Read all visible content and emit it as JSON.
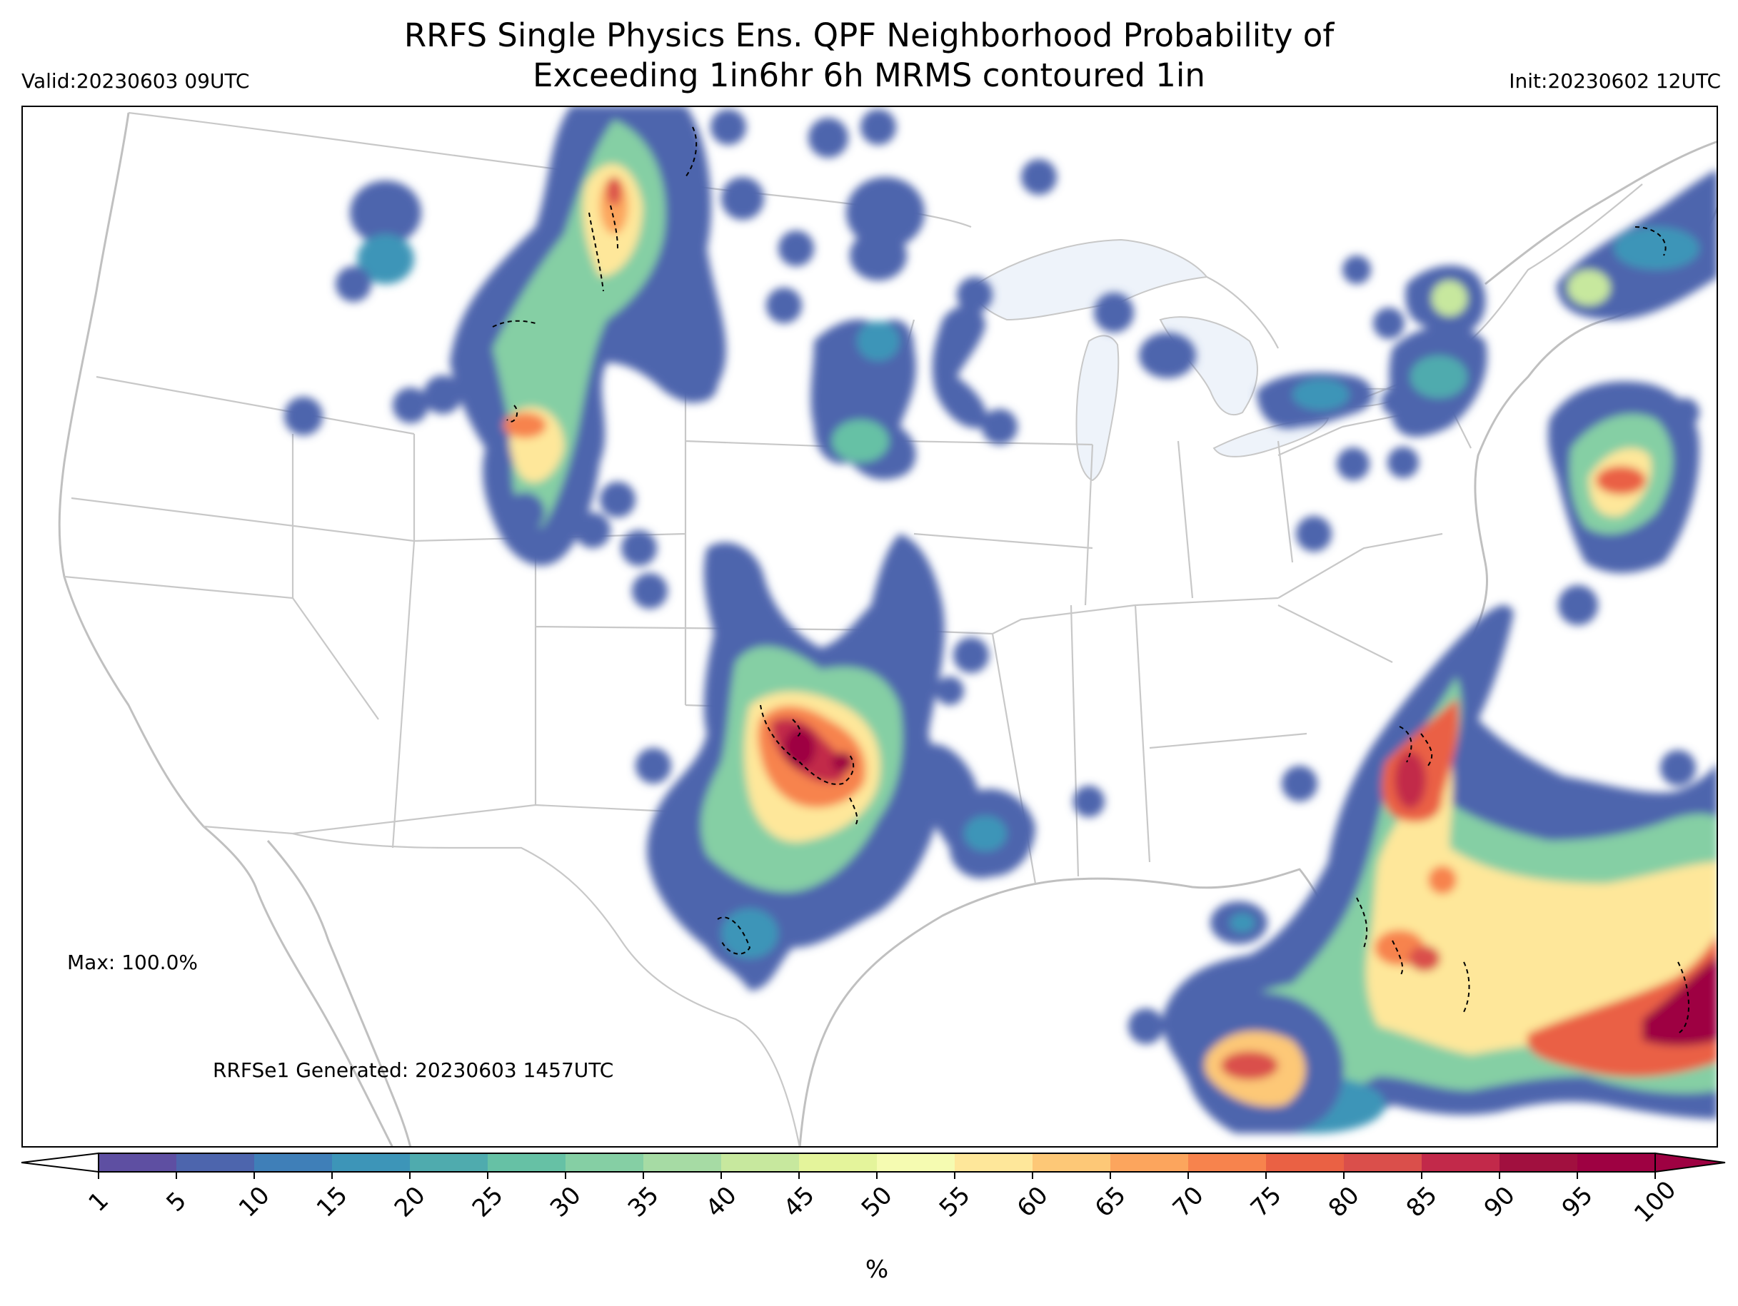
{
  "title": {
    "line1": "RRFS Single Physics Ens. QPF Neighborhood Probability of",
    "line2": "Exceeding 1in6hr 6h MRMS contoured 1in"
  },
  "valid_label": "Valid:20230603 09UTC",
  "init_label": "Init:20230602 12UTC",
  "max_label": "Max: 100.0%",
  "generated_label": "RRFSe1 Generated: 20230603 1457UTC",
  "colorbar": {
    "unit_label": "%",
    "ticks": [
      "1",
      "5",
      "10",
      "15",
      "20",
      "25",
      "30",
      "35",
      "40",
      "45",
      "50",
      "55",
      "60",
      "65",
      "70",
      "75",
      "80",
      "85",
      "90",
      "95",
      "100"
    ],
    "colors": [
      "#5e4fa2",
      "#4d65ad",
      "#3f7fb8",
      "#3d95b8",
      "#4fabae",
      "#66c1a5",
      "#85cfa4",
      "#a6dba4",
      "#c7e89e",
      "#e4f49b",
      "#f5fbb1",
      "#fee79a",
      "#fdc877",
      "#fca55d",
      "#f7834d",
      "#ea6144",
      "#da4f4b",
      "#c2294a",
      "#a1103f",
      "#9e0142"
    ],
    "under_color": "#ffffff",
    "over_color": "#9e0142"
  },
  "map": {
    "projection": "CONUS Lambert Conformal",
    "land_color": "#ffffff",
    "lake_color": "#eef3fa",
    "border_color": "#c8c8c8",
    "observed_contour_style": "black dashed"
  }
}
